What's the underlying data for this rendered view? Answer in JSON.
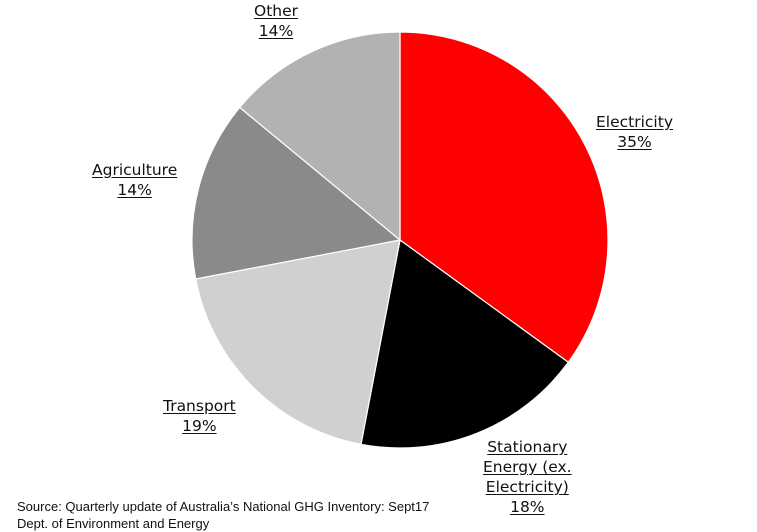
{
  "chart_data": {
    "type": "pie",
    "title": "",
    "slices": [
      {
        "label": "Electricity",
        "value": 35,
        "value_label": "35%",
        "color": "#ff0000"
      },
      {
        "label": "Stationary Energy (ex. Electricity)",
        "label_lines": [
          "Stationary",
          "Energy (ex.",
          "Electricity)"
        ],
        "value": 18,
        "value_label": "18%",
        "color": "#000000"
      },
      {
        "label": "Transport",
        "value": 19,
        "value_label": "19%",
        "color": "#d0d0d0"
      },
      {
        "label": "Agriculture",
        "value": 14,
        "value_label": "14%",
        "color": "#8a8a8a"
      },
      {
        "label": "Other",
        "value": 14,
        "value_label": "14%",
        "color": "#b2b2b2"
      }
    ],
    "start_angle": "12 o'clock",
    "direction": "clockwise",
    "legend": "none (labels beside slices)",
    "slice_border_color": "#ffffff"
  },
  "source": {
    "line1": "Source: Quarterly update of Australia’s National GHG Inventory: Sept17",
    "line2": "Dept. of Environment and Energy"
  }
}
